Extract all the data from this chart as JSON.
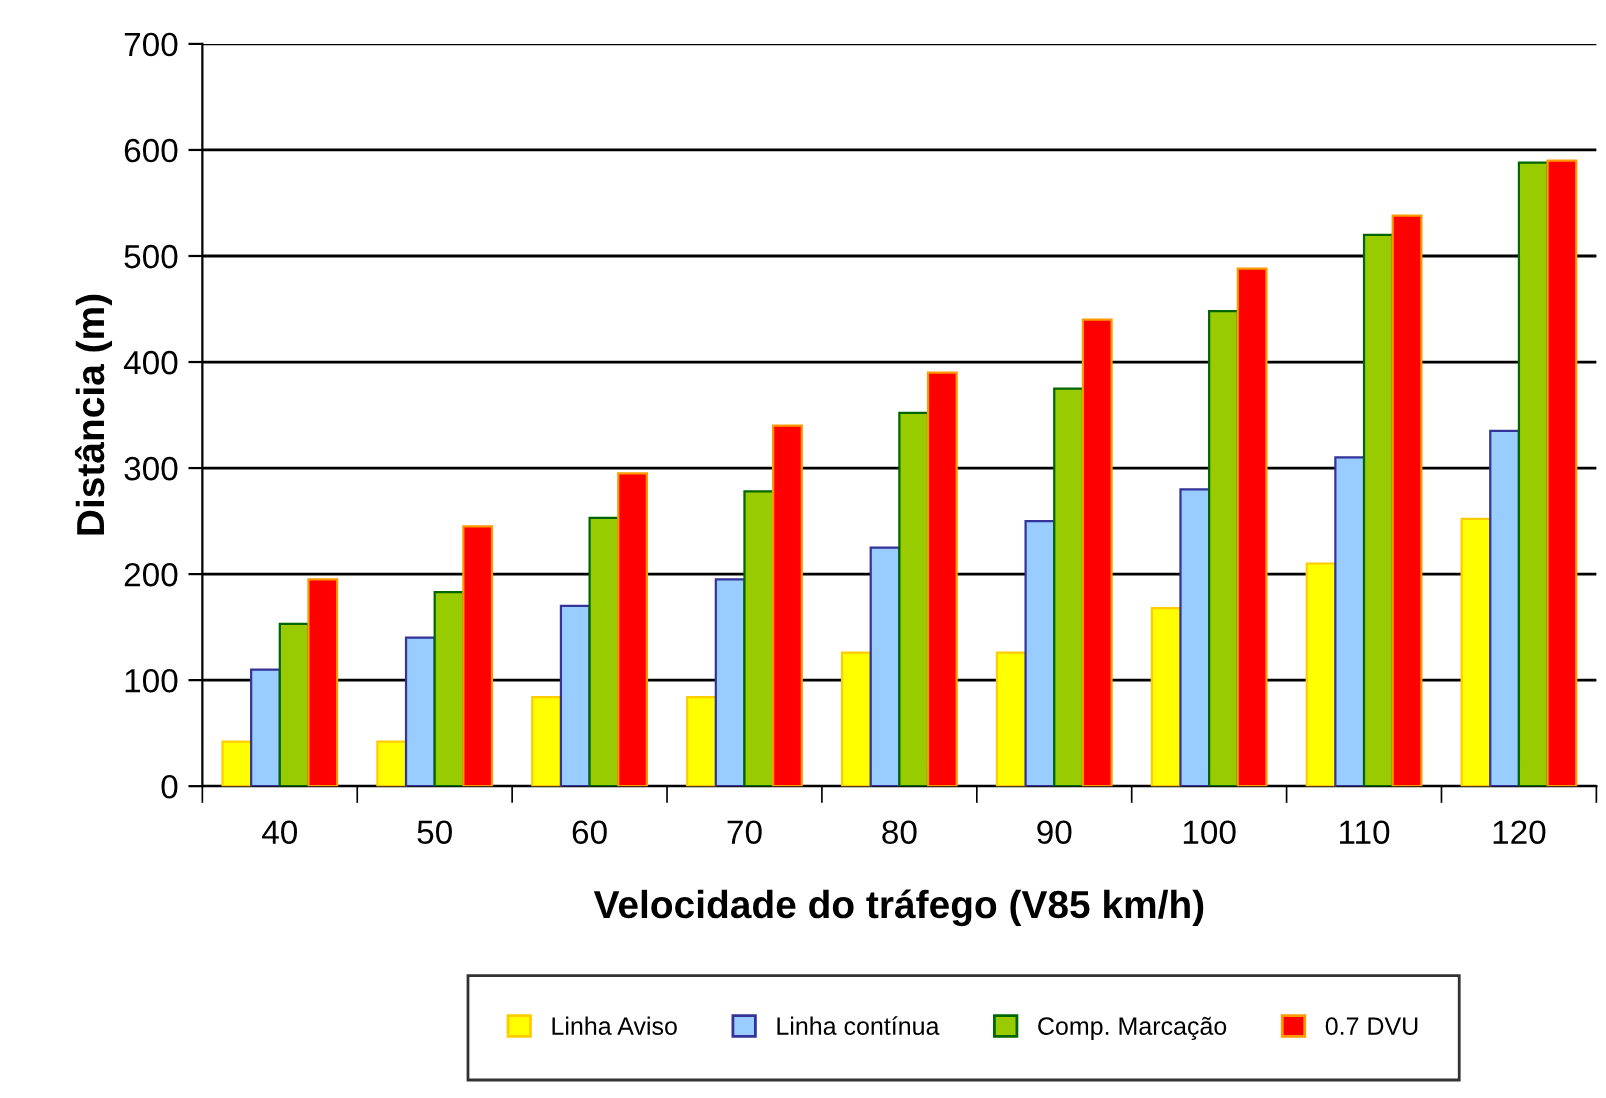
{
  "chart_data": {
    "type": "bar",
    "xlabel": "Velocidade do tráfego (V85 km/h)",
    "ylabel": "Distância (m)",
    "categories": [
      "40",
      "50",
      "60",
      "70",
      "80",
      "90",
      "100",
      "110",
      "120"
    ],
    "series": [
      {
        "name": "Linha Aviso",
        "color": "#ffff00",
        "values": [
          42,
          42,
          84,
          84,
          126,
          126,
          168,
          210,
          252
        ]
      },
      {
        "name": "Linha contínua",
        "color": "#99ccff",
        "values": [
          110,
          140,
          170,
          195,
          225,
          250,
          280,
          310,
          335
        ]
      },
      {
        "name": "Comp. Marcação",
        "color": "#99cc00",
        "values": [
          153,
          183,
          253,
          278,
          352,
          375,
          448,
          520,
          588
        ]
      },
      {
        "name": "0.7 DVU",
        "color": "#ff0000",
        "values": [
          195,
          245,
          295,
          340,
          390,
          440,
          488,
          538,
          590
        ]
      }
    ],
    "ylim": [
      0,
      700
    ],
    "yticks": [
      0,
      100,
      200,
      300,
      400,
      500,
      600,
      700
    ],
    "grid": "y",
    "legend": "bottom"
  }
}
